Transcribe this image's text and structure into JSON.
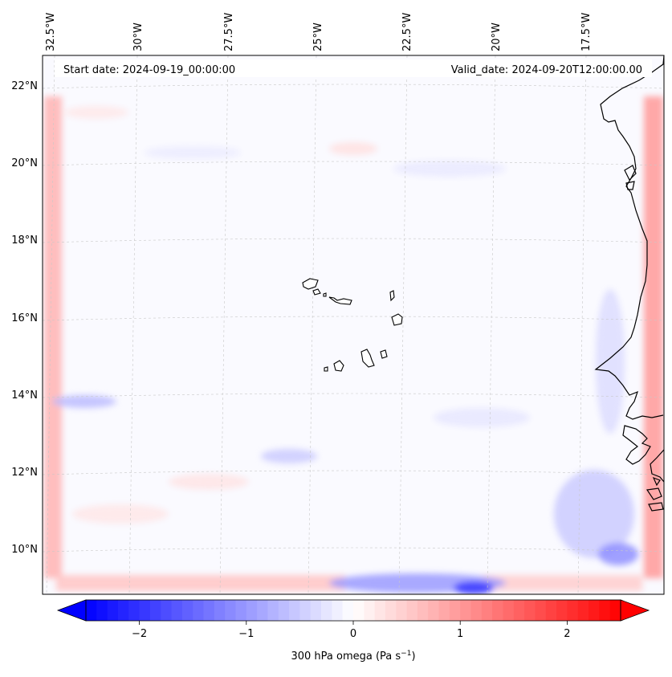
{
  "map": {
    "start_date_label": "Start date: 2024-09-19_00:00:00",
    "valid_date_label": "Valid_date: 2024-09-20T12:00:00.00",
    "lon_labels": [
      "32.5°W",
      "30°W",
      "27.5°W",
      "25°W",
      "22.5°W",
      "20°W",
      "17.5°W"
    ],
    "lat_labels": [
      "22°N",
      "20°N",
      "18°N",
      "16°N",
      "14°N",
      "12°N",
      "10°N"
    ],
    "lon_range": [
      -33.5,
      -15.3
    ],
    "lat_range": [
      8.9,
      22.8
    ],
    "variable": "300 hPa omega",
    "units": "Pa s",
    "units_exponent": "−1",
    "islands": [
      "Santo Antão",
      "São Vicente",
      "Santa Luzia",
      "São Nicolau",
      "Sal",
      "Boa Vista",
      "Maio",
      "Santiago",
      "Fogo",
      "Brava"
    ]
  },
  "colorbar": {
    "ticks": [
      "−2",
      "−1",
      "0",
      "1",
      "2"
    ],
    "tick_values": [
      -2,
      -1,
      0,
      1,
      2
    ],
    "range": [
      -2.5,
      2.5
    ],
    "label_text": "300 hPa omega (Pa s",
    "label_sup": "−1",
    "label_close": ")",
    "min_color": "#0000ff",
    "mid_color": "#ffffff",
    "max_color": "#ff0000"
  }
}
